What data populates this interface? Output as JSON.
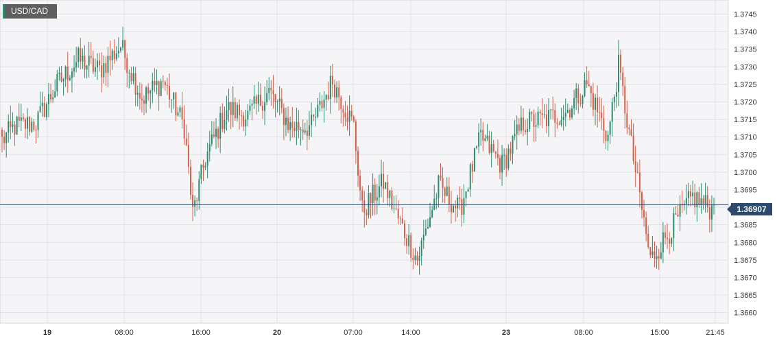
{
  "symbol": "USD/CAD",
  "last_price": "1.36907",
  "chart_data": {
    "type": "candlestick",
    "ylim": [
      1.3657,
      1.3749
    ],
    "yticks": [
      "1.3745",
      "1.3740",
      "1.3735",
      "1.3730",
      "1.3725",
      "1.3720",
      "1.3715",
      "1.3710",
      "1.3705",
      "1.3700",
      "1.3695",
      "1.3690",
      "1.3685",
      "1.3680",
      "1.3675",
      "1.3670",
      "1.3665",
      "1.3660"
    ],
    "xticks": [
      {
        "label": "19",
        "bold": true
      },
      {
        "label": "08:00",
        "bold": false
      },
      {
        "label": "16:00",
        "bold": false
      },
      {
        "label": "20",
        "bold": true
      },
      {
        "label": "07:00",
        "bold": false
      },
      {
        "label": "14:00",
        "bold": false
      },
      {
        "label": "23",
        "bold": true
      },
      {
        "label": "08:00",
        "bold": false
      },
      {
        "label": "15:00",
        "bold": false
      },
      {
        "label": "21:45",
        "bold": false
      }
    ],
    "last_value": 1.36907,
    "up_color": "#2e8b6e",
    "down_color": "#d2604b",
    "price_line_color": "#2c4a6b",
    "anchors": [
      [
        0,
        1.3709
      ],
      [
        6,
        1.3713
      ],
      [
        16,
        1.3714
      ],
      [
        26,
        1.3725
      ],
      [
        36,
        1.3732
      ],
      [
        46,
        1.3729
      ],
      [
        56,
        1.3736
      ],
      [
        66,
        1.3721
      ],
      [
        76,
        1.3726
      ],
      [
        86,
        1.3713
      ],
      [
        90,
        1.3688
      ],
      [
        96,
        1.3704
      ],
      [
        106,
        1.3718
      ],
      [
        116,
        1.3716
      ],
      [
        126,
        1.3723
      ],
      [
        136,
        1.3713
      ],
      [
        146,
        1.3713
      ],
      [
        156,
        1.3726
      ],
      [
        166,
        1.3713
      ],
      [
        170,
        1.3689
      ],
      [
        180,
        1.3697
      ],
      [
        186,
        1.3688
      ],
      [
        196,
        1.3675
      ],
      [
        206,
        1.3696
      ],
      [
        216,
        1.3689
      ],
      [
        226,
        1.371
      ],
      [
        236,
        1.3702
      ],
      [
        246,
        1.3714
      ],
      [
        256,
        1.3715
      ],
      [
        266,
        1.3717
      ],
      [
        276,
        1.3725
      ],
      [
        286,
        1.371
      ],
      [
        291,
        1.373
      ],
      [
        296,
        1.3711
      ],
      [
        306,
        1.3675
      ],
      [
        316,
        1.3684
      ],
      [
        326,
        1.3693
      ],
      [
        336,
        1.3689
      ]
    ]
  }
}
